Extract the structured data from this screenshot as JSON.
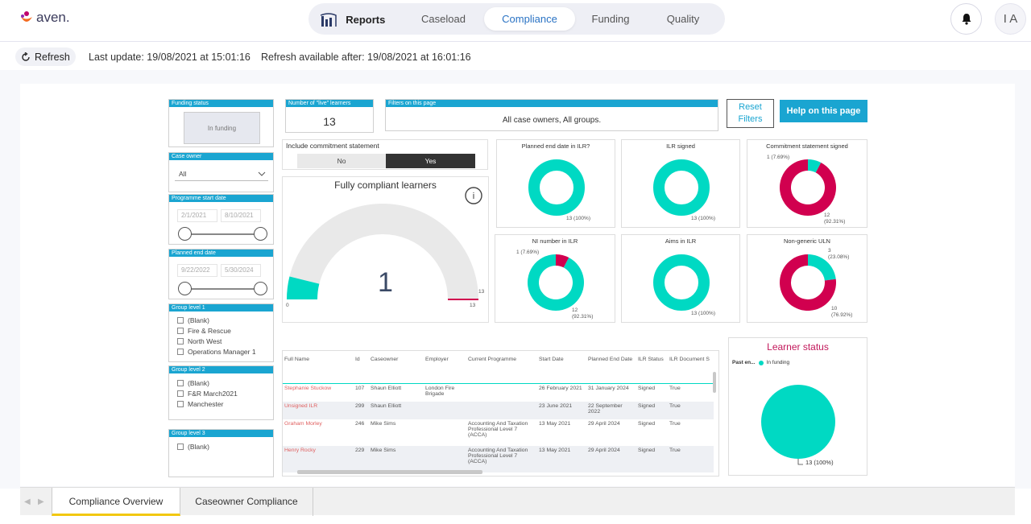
{
  "app": {
    "logo_text": "aven."
  },
  "nav": {
    "items": [
      {
        "label": "Reports"
      },
      {
        "label": "Caseload"
      },
      {
        "label": "Compliance"
      },
      {
        "label": "Funding"
      },
      {
        "label": "Quality"
      }
    ],
    "active": "Compliance"
  },
  "user": {
    "initials": "I A"
  },
  "subbar": {
    "refresh_label": "Refresh",
    "last_update": "Last update: 19/08/2021 at 15:01:16",
    "refresh_available": "Refresh available after: 19/08/2021 at 16:01:16"
  },
  "filters": {
    "funding_status": {
      "title": "Funding status",
      "value": "In funding"
    },
    "case_owner": {
      "title": "Case owner",
      "value": "All"
    },
    "programme_start": {
      "title": "Programme start date",
      "from": "2/1/2021",
      "to": "8/10/2021"
    },
    "planned_end": {
      "title": "Planned end date",
      "from": "9/22/2022",
      "to": "5/30/2024"
    },
    "group1": {
      "title": "Group level 1",
      "options": [
        "(Blank)",
        "Fire & Rescue",
        "North West",
        "Operations Manager 1"
      ]
    },
    "group2": {
      "title": "Group level 2",
      "options": [
        "(Blank)",
        "F&R March2021",
        "Manchester"
      ]
    },
    "group3": {
      "title": "Group level 3",
      "options": [
        "(Blank)"
      ]
    }
  },
  "kpi": {
    "live_title": "Number of \"live\" learners",
    "live_value": "13",
    "filters_title": "Filters on this page",
    "filters_value": "All case owners, All groups.",
    "reset_label": "Reset Filters",
    "help_label": "Help on this page"
  },
  "commitment": {
    "title": "Include commitment statement",
    "no": "No",
    "yes": "Yes"
  },
  "gauge": {
    "title": "Fully compliant learners",
    "value": "1",
    "min": "0",
    "max": "13",
    "target": "13",
    "info_icon": "i"
  },
  "donuts": [
    {
      "title": "Planned end date in ILR?",
      "labels": [
        "13 (100%)"
      ]
    },
    {
      "title": "ILR signed",
      "labels": [
        "13 (100%)"
      ]
    },
    {
      "title": "Commitment statement signed",
      "labels": [
        "1 (7.69%)",
        "12",
        "(92.31%)"
      ]
    },
    {
      "title": "NI number in ILR",
      "labels": [
        "1 (7.69%)",
        "12",
        "(92.31%)"
      ]
    },
    {
      "title": "Aims in ILR",
      "labels": [
        "13 (100%)"
      ]
    },
    {
      "title": "Non-generic ULN",
      "labels": [
        "3",
        "(23.08%)",
        "10",
        "(76.92%)"
      ]
    }
  ],
  "colors": {
    "teal": "#00d9c3",
    "crimson": "#d1004f",
    "accent": "#1aa5d1"
  },
  "table": {
    "headers": [
      "Full Name",
      "Id",
      "Caseowner",
      "Employer",
      "Current Programme",
      "Start Date",
      "Planned End Date",
      "ILR Status",
      "ILR Document S"
    ],
    "rows": [
      [
        "Stephanie Stuckow",
        "107",
        "Shaun Elliott",
        "London Fire Brigade",
        "",
        "26 February 2021",
        "31 January 2024",
        "Signed",
        "True"
      ],
      [
        "Unsigned ILR",
        "299",
        "Shaun Elliott",
        "",
        "",
        "23 June 2021",
        "22 September 2022",
        "Signed",
        "True"
      ],
      [
        "Graham Morley",
        "246",
        "Mike Sims",
        "",
        "Accounting And Taxation Professional Level 7 (ACCA)",
        "13 May 2021",
        "29 April 2024",
        "Signed",
        "True"
      ],
      [
        "Henry Rocky",
        "229",
        "Mike Sims",
        "",
        "Accounting And Taxation Professional Level 7 (ACCA)",
        "13 May 2021",
        "29 April 2024",
        "Signed",
        "True"
      ]
    ]
  },
  "learner_status": {
    "title": "Learner status",
    "legend_prefix": "Past en...",
    "legend_item": "In funding",
    "label": "13 (100%)"
  },
  "tabs": [
    {
      "label": "Compliance Overview"
    },
    {
      "label": "Caseowner Compliance"
    }
  ]
}
